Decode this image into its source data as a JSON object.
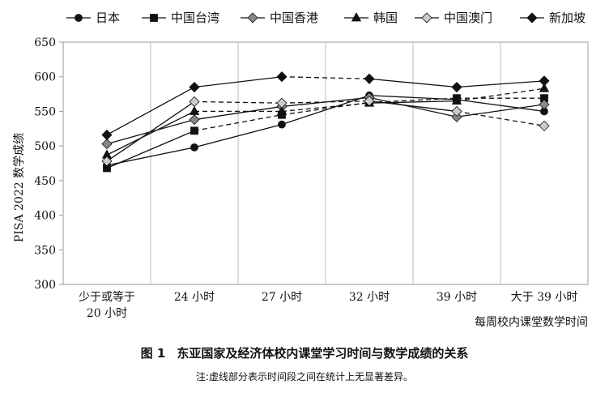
{
  "chart_data": {
    "type": "line",
    "categories": [
      "少于或等于\n20 小时",
      "24 小时",
      "27 小时",
      "32 小时",
      "39 小时",
      "大于 39 小时"
    ],
    "xlabel": "每周校内课堂数学时间",
    "ylabel": "PISA 2022 数学成绩",
    "ylim": [
      300,
      650
    ],
    "yticks": [
      300,
      350,
      400,
      450,
      500,
      550,
      600,
      650
    ],
    "grid": "vertical",
    "legend_position": "top",
    "series": [
      {
        "name": "日本",
        "marker": "circle",
        "fill": "#111111",
        "values": [
          472,
          498,
          531,
          573,
          567,
          550
        ],
        "dashed_segments": []
      },
      {
        "name": "中国台湾",
        "marker": "square",
        "fill": "#111111",
        "values": [
          468,
          522,
          545,
          563,
          569,
          569
        ],
        "dashed_segments": [
          1,
          2,
          3,
          4
        ]
      },
      {
        "name": "中国香港",
        "marker": "diamond",
        "fill": "#888888",
        "values": [
          503,
          538,
          557,
          570,
          542,
          560
        ],
        "dashed_segments": []
      },
      {
        "name": "韩国",
        "marker": "triangle",
        "fill": "#111111",
        "values": [
          487,
          550,
          550,
          562,
          565,
          583
        ],
        "dashed_segments": [
          1,
          2,
          4
        ]
      },
      {
        "name": "中国澳门",
        "marker": "diamond",
        "fill": "#cccccc",
        "values": [
          478,
          564,
          562,
          565,
          550,
          529
        ],
        "dashed_segments": [
          1,
          2,
          4
        ]
      },
      {
        "name": "新加坡",
        "marker": "diamond",
        "fill": "#111111",
        "values": [
          516,
          585,
          600,
          597,
          585,
          594
        ],
        "dashed_segments": [
          2
        ]
      }
    ]
  },
  "caption": {
    "label": "图 1",
    "title": "东亚国家及经济体校内课堂学习时间与数学成绩的关系",
    "note": "注:虚线部分表示时间段之间在统计上无显著差异。"
  }
}
